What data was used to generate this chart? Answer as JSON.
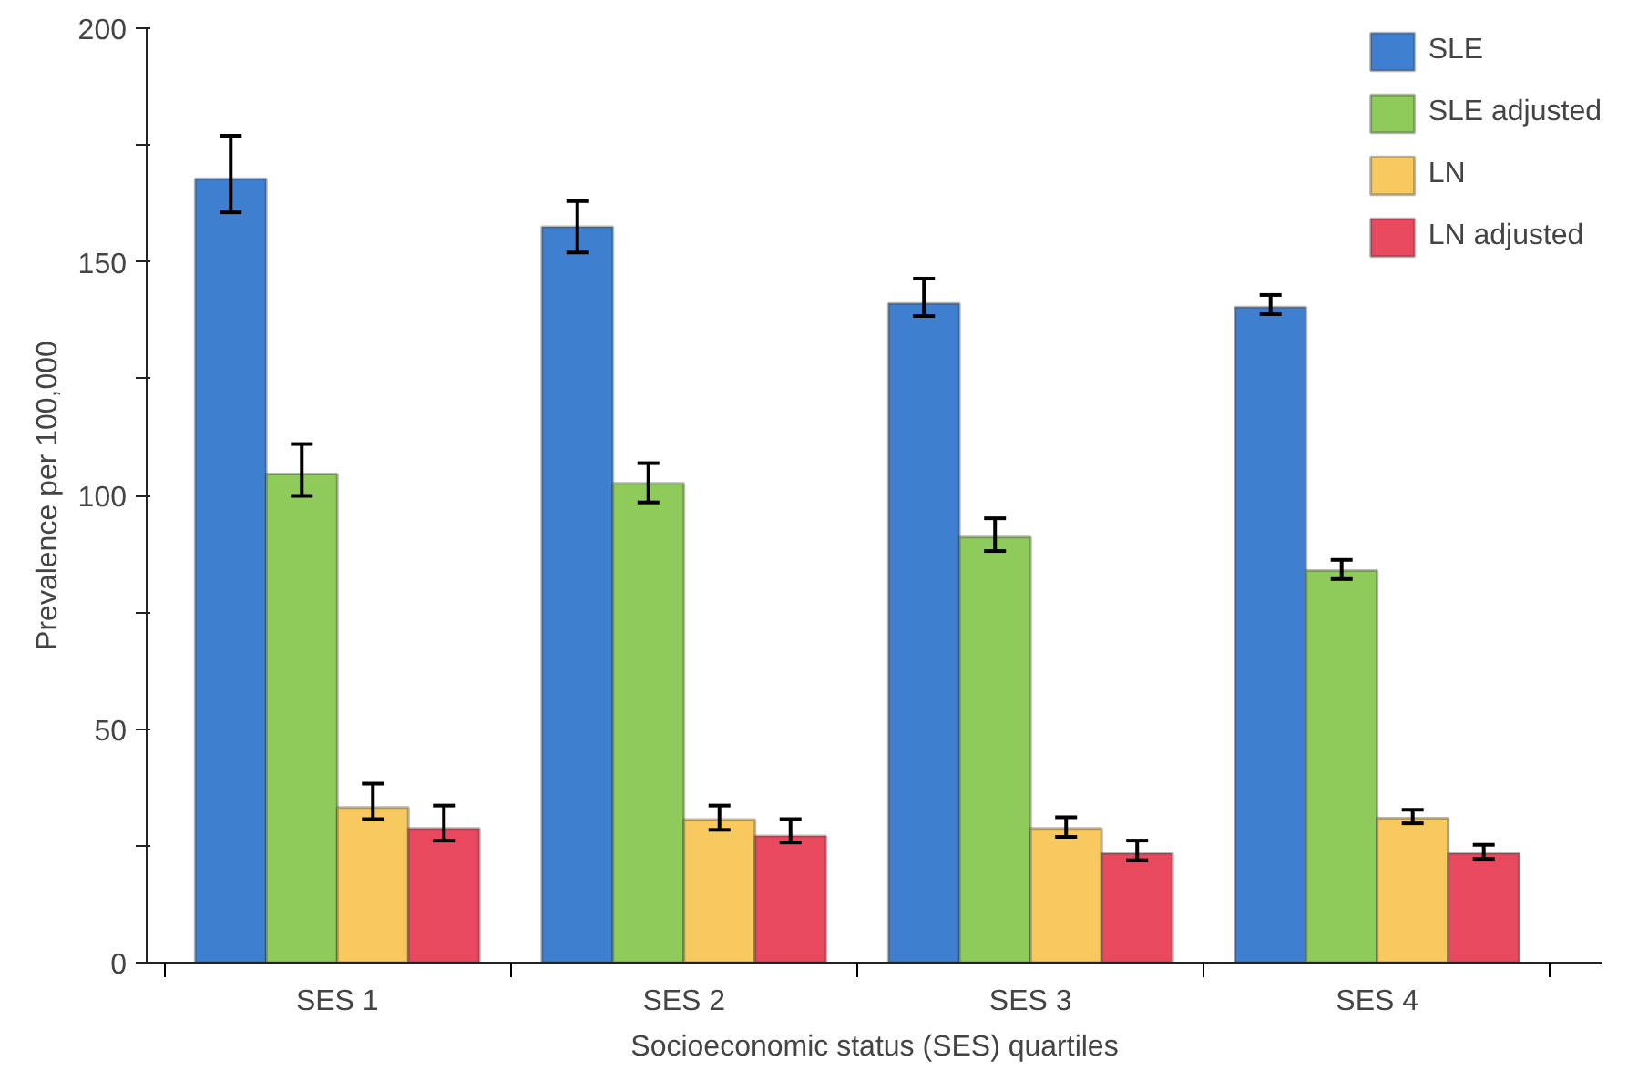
{
  "chart_data": {
    "type": "bar",
    "xlabel": "Socioeconomic status (SES) quartiles",
    "ylabel": "Prevalence per 100,000",
    "categories": [
      "SES 1",
      "SES 2",
      "SES 3",
      "SES 4"
    ],
    "series": [
      {
        "name": "SLE",
        "color": "#3f7fcf",
        "values": [
          167.8,
          157.5,
          141.1,
          140.3
        ],
        "errors": [
          [
            160.6,
            177
          ],
          [
            152,
            163
          ],
          [
            138.4,
            146.4
          ],
          [
            138.8,
            142.9
          ]
        ]
      },
      {
        "name": "SLE adjusted",
        "color": "#8fcb5a",
        "values": [
          104.6,
          102.6,
          91.1,
          83.9
        ],
        "errors": [
          [
            99.9,
            111
          ],
          [
            98.5,
            106.9
          ],
          [
            88.1,
            95.1
          ],
          [
            82.1,
            86.2
          ]
        ]
      },
      {
        "name": "LN",
        "color": "#f8c95e",
        "values": [
          33.2,
          30.6,
          28.7,
          30.9
        ],
        "errors": [
          [
            30.7,
            38.3
          ],
          [
            28.4,
            33.6
          ],
          [
            26.9,
            31.1
          ],
          [
            29.8,
            32.7
          ]
        ]
      },
      {
        "name": "LN adjusted",
        "color": "#e8495f",
        "values": [
          28.7,
          27.1,
          23.4,
          23.4
        ],
        "errors": [
          [
            26.1,
            33.6
          ],
          [
            25.7,
            30.7
          ],
          [
            21.9,
            26.1
          ],
          [
            22.2,
            25.2
          ]
        ]
      }
    ],
    "ylim": [
      0,
      200
    ],
    "yticks": [
      0,
      {
        "value": 25,
        "label": null
      },
      50,
      {
        "value": 75,
        "label": null
      },
      100,
      {
        "value": 125,
        "label": null
      },
      150,
      {
        "value": 175,
        "label": null
      },
      200
    ],
    "grid": false,
    "legend": "top right"
  }
}
